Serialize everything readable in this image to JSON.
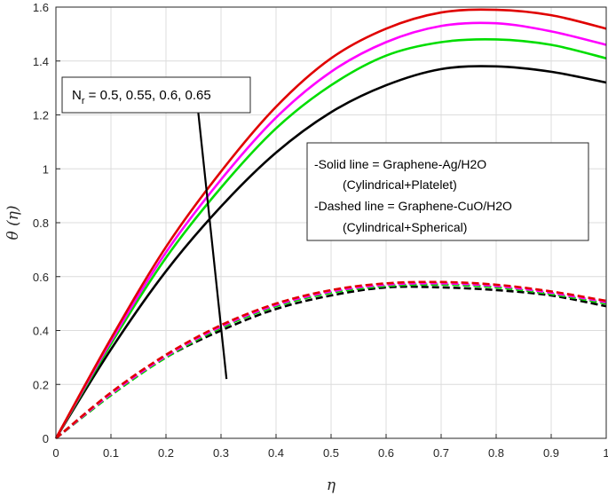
{
  "chart_data": {
    "type": "line",
    "title": "",
    "xlabel": "η",
    "ylabel": "θ (η)",
    "xlim": [
      0,
      1
    ],
    "ylim": [
      0,
      1.6
    ],
    "xticks": [
      "0",
      "0.1",
      "0.2",
      "0.3",
      "0.4",
      "0.5",
      "0.6",
      "0.7",
      "0.8",
      "0.9",
      "1"
    ],
    "yticks": [
      "0",
      "0.2",
      "0.4",
      "0.6",
      "0.8",
      "1",
      "1.2",
      "1.4",
      "1.6"
    ],
    "grid": true,
    "colors": [
      "#000000",
      "#00dd00",
      "#ff00ff",
      "#e00000"
    ],
    "x": [
      0,
      0.1,
      0.2,
      0.3,
      0.4,
      0.5,
      0.6,
      0.7,
      0.8,
      0.9,
      1.0
    ],
    "series": [
      {
        "style": "solid",
        "color": "#000000",
        "values": [
          0,
          0.33,
          0.62,
          0.86,
          1.06,
          1.21,
          1.31,
          1.37,
          1.38,
          1.36,
          1.32
        ]
      },
      {
        "style": "solid",
        "color": "#00dd00",
        "values": [
          0,
          0.35,
          0.67,
          0.93,
          1.15,
          1.31,
          1.42,
          1.47,
          1.48,
          1.46,
          1.41
        ]
      },
      {
        "style": "solid",
        "color": "#ff00ff",
        "values": [
          0,
          0.36,
          0.69,
          0.96,
          1.19,
          1.36,
          1.47,
          1.53,
          1.54,
          1.51,
          1.46
        ]
      },
      {
        "style": "solid",
        "color": "#e00000",
        "values": [
          0,
          0.37,
          0.71,
          0.99,
          1.23,
          1.41,
          1.52,
          1.58,
          1.59,
          1.57,
          1.52
        ]
      },
      {
        "style": "dashed",
        "color": "#000000",
        "values": [
          0,
          0.16,
          0.3,
          0.4,
          0.48,
          0.53,
          0.56,
          0.56,
          0.55,
          0.53,
          0.49
        ]
      },
      {
        "style": "dashed",
        "color": "#00dd00",
        "values": [
          0,
          0.16,
          0.3,
          0.41,
          0.49,
          0.54,
          0.565,
          0.57,
          0.56,
          0.535,
          0.5
        ]
      },
      {
        "style": "dashed",
        "color": "#ff00ff",
        "values": [
          0,
          0.165,
          0.305,
          0.415,
          0.495,
          0.545,
          0.57,
          0.575,
          0.565,
          0.54,
          0.505
        ]
      },
      {
        "style": "dashed",
        "color": "#e00000",
        "values": [
          0,
          0.17,
          0.31,
          0.42,
          0.5,
          0.55,
          0.575,
          0.58,
          0.57,
          0.545,
          0.51
        ]
      }
    ],
    "arrow": {
      "from": [
        0.31,
        0.22
      ],
      "to": [
        0.255,
        1.28
      ]
    },
    "annotation_nr": {
      "prefix": "N",
      "subscript": "r",
      "rest": " = 0.5, 0.55, 0.6, 0.65"
    },
    "legend_lines": [
      "-Solid line = Graphene-Ag/H2O",
      "(Cylindrical+Platelet)",
      "-Dashed line = Graphene-CuO/H2O",
      "(Cylindrical+Spherical)"
    ]
  }
}
